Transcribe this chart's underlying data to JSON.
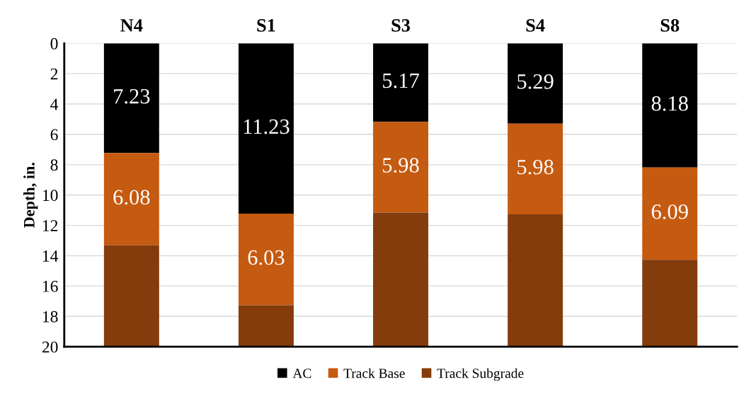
{
  "chart_data": {
    "type": "bar",
    "stacked": true,
    "ylabel": "Depth, in.",
    "categories": [
      "N4",
      "S1",
      "S3",
      "S4",
      "S8"
    ],
    "series": [
      {
        "name": "AC",
        "color": "#000000",
        "values": [
          7.23,
          11.23,
          5.17,
          5.29,
          8.18
        ],
        "value_labels": [
          "7.23",
          "11.23",
          "5.17",
          "5.29",
          "8.18"
        ]
      },
      {
        "name": "Track Base",
        "color": "#c55a11",
        "values": [
          6.08,
          6.03,
          5.98,
          5.98,
          6.09
        ],
        "value_labels": [
          "6.08",
          "6.03",
          "5.98",
          "5.98",
          "6.09"
        ]
      },
      {
        "name": "Track Subgrade",
        "color": "#843c0c",
        "values": [
          6.69,
          2.74,
          8.85,
          8.73,
          5.73
        ]
      }
    ],
    "ylim": [
      20,
      0
    ],
    "yticks": [
      0,
      2,
      4,
      6,
      8,
      10,
      12,
      14,
      16,
      18,
      20
    ],
    "grid": "y",
    "legend": "bottom"
  }
}
